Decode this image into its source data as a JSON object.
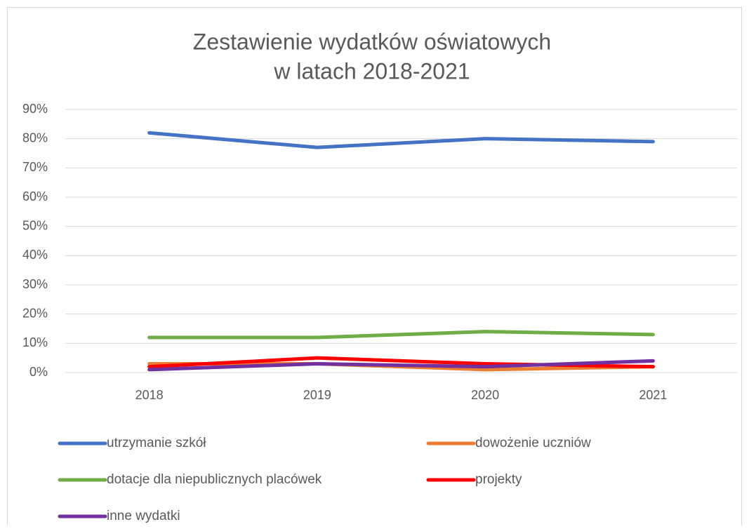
{
  "chart_data": {
    "type": "line",
    "title": [
      "Zestawienie wydatków  oświatowych",
      "w latach 2018-2021"
    ],
    "categories": [
      "2018",
      "2019",
      "2020",
      "2021"
    ],
    "series": [
      {
        "name": "utrzymanie szkół",
        "color": "#4472c4",
        "values": [
          82,
          77,
          80,
          79
        ]
      },
      {
        "name": "dowożenie uczniów",
        "color": "#ed7d31",
        "values": [
          3,
          3,
          1,
          2
        ]
      },
      {
        "name": "dotacje dla niepublicznych placówek",
        "color": "#70ad47",
        "values": [
          12,
          12,
          14,
          13
        ]
      },
      {
        "name": "projekty",
        "color": "#ff0000",
        "values": [
          2,
          5,
          3,
          2
        ]
      },
      {
        "name": "inne wydatki",
        "color": "#7030a0",
        "values": [
          1,
          3,
          2,
          4
        ]
      }
    ],
    "ylim": [
      0,
      90
    ],
    "yticks": [
      {
        "value": 0,
        "label": "0%"
      },
      {
        "value": 10,
        "label": "10%"
      },
      {
        "value": 20,
        "label": "20%"
      },
      {
        "value": 30,
        "label": "30%"
      },
      {
        "value": 40,
        "label": "40%"
      },
      {
        "value": 50,
        "label": "50%"
      },
      {
        "value": 60,
        "label": "60%"
      },
      {
        "value": 70,
        "label": "70%"
      },
      {
        "value": 80,
        "label": "80%"
      },
      {
        "value": 90,
        "label": "90%"
      }
    ],
    "grid": true,
    "legend": "bottom"
  }
}
